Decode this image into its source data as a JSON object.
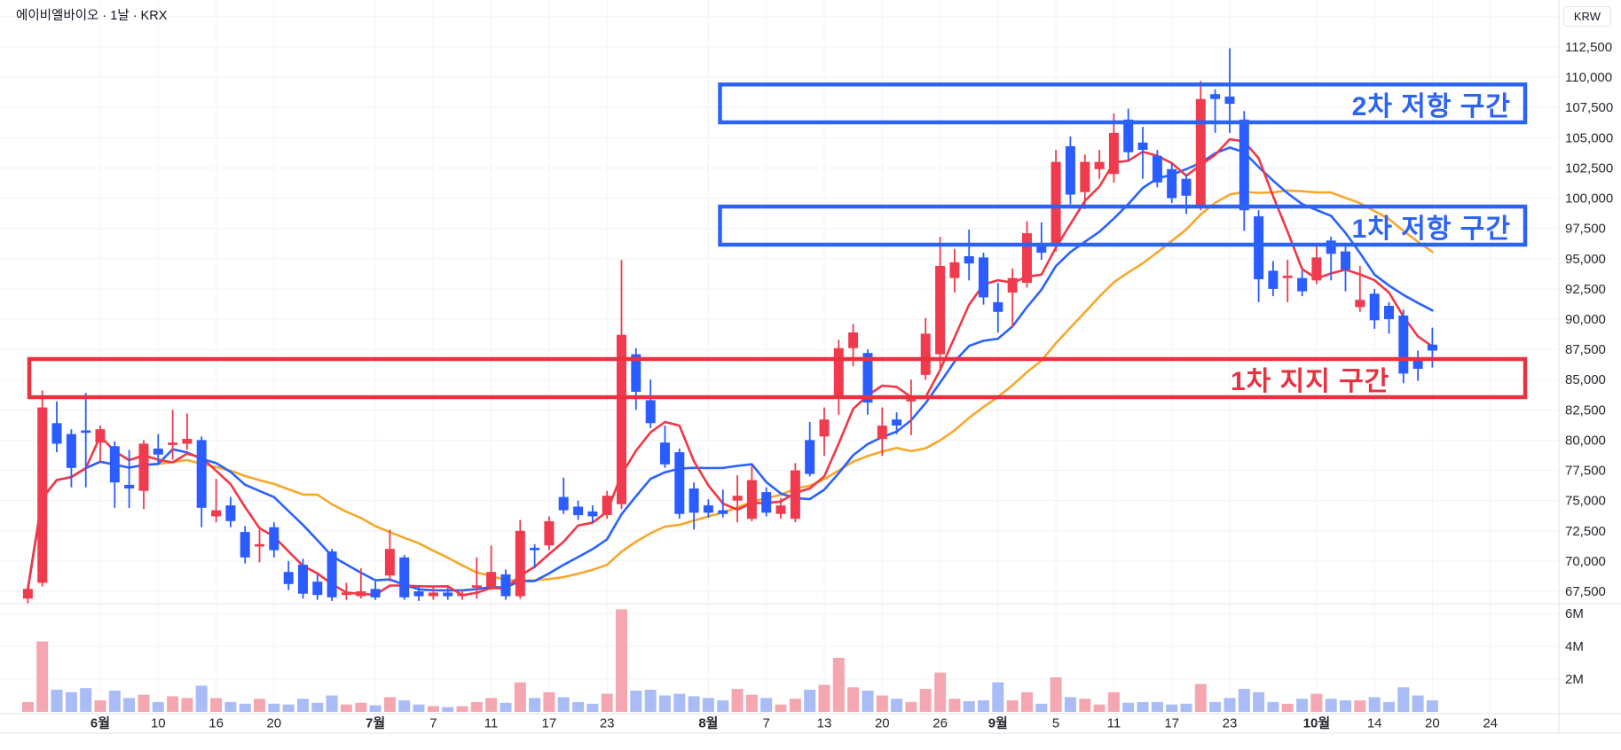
{
  "header": {
    "symbol_title": "에이비엘바이오 · 1날 · KRX"
  },
  "price_axis": {
    "currency_label": "KRW",
    "ticks": [
      {
        "label": "112,500",
        "value": 112500
      },
      {
        "label": "110,000",
        "value": 110000
      },
      {
        "label": "107,500",
        "value": 107500
      },
      {
        "label": "105,000",
        "value": 105000
      },
      {
        "label": "102,500",
        "value": 102500
      },
      {
        "label": "100,000",
        "value": 100000
      },
      {
        "label": "97,500",
        "value": 97500
      },
      {
        "label": "95,000",
        "value": 95000
      },
      {
        "label": "92,500",
        "value": 92500
      },
      {
        "label": "90,000",
        "value": 90000
      },
      {
        "label": "87,500",
        "value": 87500
      },
      {
        "label": "85,000",
        "value": 85000
      },
      {
        "label": "82,500",
        "value": 82500
      },
      {
        "label": "80,000",
        "value": 80000
      },
      {
        "label": "77,500",
        "value": 77500
      },
      {
        "label": "75,000",
        "value": 75000
      },
      {
        "label": "72,500",
        "value": 72500
      },
      {
        "label": "70,000",
        "value": 70000
      },
      {
        "label": "67,500",
        "value": 67500
      }
    ]
  },
  "volume_axis": {
    "ticks": [
      {
        "label": "6M",
        "value": 6
      },
      {
        "label": "4M",
        "value": 4
      },
      {
        "label": "2M",
        "value": 2
      }
    ]
  },
  "time_axis": {
    "ticks": [
      {
        "label": "6월",
        "index": 5,
        "bold": true
      },
      {
        "label": "10",
        "index": 9,
        "bold": false
      },
      {
        "label": "16",
        "index": 13,
        "bold": false
      },
      {
        "label": "20",
        "index": 17,
        "bold": false
      },
      {
        "label": "7월",
        "index": 24,
        "bold": true
      },
      {
        "label": "7",
        "index": 28,
        "bold": false
      },
      {
        "label": "11",
        "index": 32,
        "bold": false
      },
      {
        "label": "17",
        "index": 36,
        "bold": false
      },
      {
        "label": "23",
        "index": 40,
        "bold": false
      },
      {
        "label": "8월",
        "index": 47,
        "bold": true
      },
      {
        "label": "7",
        "index": 51,
        "bold": false
      },
      {
        "label": "13",
        "index": 55,
        "bold": false
      },
      {
        "label": "20",
        "index": 59,
        "bold": false
      },
      {
        "label": "26",
        "index": 63,
        "bold": false
      },
      {
        "label": "9월",
        "index": 67,
        "bold": true
      },
      {
        "label": "5",
        "index": 71,
        "bold": false
      },
      {
        "label": "11",
        "index": 75,
        "bold": false
      },
      {
        "label": "17",
        "index": 79,
        "bold": false
      },
      {
        "label": "23",
        "index": 83,
        "bold": false
      },
      {
        "label": "10월",
        "index": 89,
        "bold": true
      },
      {
        "label": "14",
        "index": 93,
        "bold": false
      },
      {
        "label": "20",
        "index": 97,
        "bold": false
      },
      {
        "label": "24",
        "index": 101,
        "bold": false
      }
    ]
  },
  "zones": [
    {
      "id": "resistance-2",
      "label": "2차 저항 구간",
      "price_top": 109400,
      "price_bottom": 106270,
      "start_index": 47.8,
      "color": "#2D63F2"
    },
    {
      "id": "resistance-1",
      "label": "1차 저항 구간",
      "price_top": 99310,
      "price_bottom": 96160,
      "start_index": 47.8,
      "color": "#2D63F2"
    },
    {
      "id": "support-1",
      "label": "1차 지지 구간",
      "price_top": 86700,
      "price_bottom": 83550,
      "start_index": 0.1,
      "color": "#E9323F"
    }
  ],
  "chart_data": {
    "type": "candlestick",
    "title": "에이비엘바이오 1날 캔들 차트 (KRX, KRW)",
    "symbol": "에이비엘바이오",
    "interval": "1날",
    "exchange": "KRX",
    "currency": "KRW",
    "ylabel": "KRW",
    "ylim": [
      66500,
      114000
    ],
    "volume_unit": "M",
    "volume_ylim": [
      0,
      6.6
    ],
    "grid": true,
    "up_color": "#EF3B4D",
    "down_color": "#2A5CFF",
    "volume_up_color": "#F5A7B1",
    "volume_down_color": "#A9BCF5",
    "annotations": [
      "2차 저항 구간 ≈ 106,300–109,400",
      "1차 저항 구간 ≈ 96,200–99,300",
      "1차 지지 구간 ≈ 83,600–86,700"
    ],
    "moving_averages": [
      {
        "name": "ma-fast",
        "period": 5,
        "color": "#F23645"
      },
      {
        "name": "ma-mid",
        "period": 10,
        "color": "#2962FF"
      },
      {
        "name": "ma-slow",
        "period": 20,
        "color": "#F8A72B"
      }
    ],
    "columns": [
      "date",
      "open",
      "high",
      "low",
      "close",
      "volume_m"
    ],
    "candles": [
      [
        "2025-05-26",
        66900,
        67900,
        66500,
        67700,
        0.6
      ],
      [
        "2025-05-27",
        68200,
        84100,
        67900,
        82700,
        4.3
      ],
      [
        "2025-05-28",
        81400,
        83200,
        79000,
        79700,
        1.35
      ],
      [
        "2025-05-29",
        80500,
        80900,
        76100,
        77700,
        1.2
      ],
      [
        "2025-05-30",
        80800,
        83900,
        76100,
        80600,
        1.45
      ],
      [
        "2025-06-02",
        79800,
        81200,
        78200,
        80900,
        0.7
      ],
      [
        "2025-06-04",
        79500,
        79900,
        74400,
        76500,
        1.3
      ],
      [
        "2025-06-05",
        76300,
        79200,
        74400,
        76000,
        0.85
      ],
      [
        "2025-06-09",
        75800,
        80000,
        74300,
        79700,
        1.05
      ],
      [
        "2025-06-10",
        79300,
        80500,
        78000,
        78800,
        0.6
      ],
      [
        "2025-06-11",
        79600,
        82500,
        78400,
        79800,
        0.95
      ],
      [
        "2025-06-12",
        79700,
        82200,
        79200,
        80100,
        0.85
      ],
      [
        "2025-06-13",
        80000,
        80300,
        72800,
        74400,
        1.6
      ],
      [
        "2025-06-16",
        73700,
        76800,
        73200,
        74200,
        0.85
      ],
      [
        "2025-06-17",
        74600,
        75300,
        72800,
        73300,
        0.6
      ],
      [
        "2025-06-18",
        72400,
        72900,
        69800,
        70300,
        0.5
      ],
      [
        "2025-06-19",
        71200,
        72600,
        69900,
        71400,
        0.8
      ],
      [
        "2025-06-20",
        72800,
        73200,
        70300,
        70900,
        0.5
      ],
      [
        "2025-06-23",
        69100,
        70000,
        67600,
        68100,
        0.45
      ],
      [
        "2025-06-24",
        69700,
        70200,
        66900,
        67300,
        0.8
      ],
      [
        "2025-06-25",
        68300,
        68900,
        66800,
        67200,
        0.55
      ],
      [
        "2025-06-26",
        70800,
        71000,
        66700,
        67000,
        1.0
      ],
      [
        "2025-06-27",
        67200,
        68200,
        66800,
        67400,
        0.45
      ],
      [
        "2025-06-30",
        67100,
        69400,
        66900,
        67500,
        0.55
      ],
      [
        "2025-07-01",
        67700,
        68300,
        66800,
        67000,
        0.4
      ],
      [
        "2025-07-02",
        68800,
        72600,
        68300,
        71000,
        0.9
      ],
      [
        "2025-07-03",
        70300,
        70500,
        66800,
        67000,
        0.7
      ],
      [
        "2025-07-04",
        67500,
        68000,
        66700,
        67100,
        0.45
      ],
      [
        "2025-07-07",
        67100,
        67900,
        66800,
        67400,
        0.35
      ],
      [
        "2025-07-08",
        67400,
        67800,
        66800,
        67100,
        0.3
      ],
      [
        "2025-07-09",
        67100,
        67600,
        66800,
        67300,
        0.35
      ],
      [
        "2025-07-10",
        67800,
        70300,
        66900,
        68000,
        0.6
      ],
      [
        "2025-07-11",
        67900,
        71300,
        67600,
        69100,
        0.85
      ],
      [
        "2025-07-14",
        68900,
        69300,
        66800,
        67100,
        0.55
      ],
      [
        "2025-07-15",
        67100,
        73400,
        66900,
        72500,
        1.8
      ],
      [
        "2025-07-16",
        71100,
        71400,
        69400,
        70900,
        0.85
      ],
      [
        "2025-07-17",
        71300,
        73700,
        70900,
        73300,
        1.2
      ],
      [
        "2025-07-18",
        75300,
        76900,
        73900,
        74200,
        0.9
      ],
      [
        "2025-07-21",
        74500,
        75000,
        73400,
        73800,
        0.6
      ],
      [
        "2025-07-22",
        74100,
        74600,
        73200,
        73700,
        0.5
      ],
      [
        "2025-07-23",
        73800,
        75800,
        73500,
        75400,
        1.1
      ],
      [
        "2025-07-24",
        74700,
        94900,
        74300,
        88700,
        6.25
      ],
      [
        "2025-07-25",
        87100,
        87600,
        82500,
        84000,
        1.3
      ],
      [
        "2025-07-28",
        83300,
        85000,
        81000,
        81400,
        1.35
      ],
      [
        "2025-07-29",
        79800,
        81200,
        77700,
        78000,
        1.0
      ],
      [
        "2025-07-30",
        79000,
        79300,
        73500,
        73900,
        1.1
      ],
      [
        "2025-07-31",
        76000,
        76500,
        72600,
        74000,
        0.95
      ],
      [
        "2025-08-01",
        74600,
        75100,
        73600,
        74000,
        0.85
      ],
      [
        "2025-08-04",
        74200,
        75900,
        73600,
        73900,
        0.7
      ],
      [
        "2025-08-05",
        75000,
        77100,
        73200,
        75400,
        1.4
      ],
      [
        "2025-08-06",
        73500,
        77900,
        73300,
        76700,
        1.05
      ],
      [
        "2025-08-07",
        75700,
        76100,
        73700,
        74000,
        0.85
      ],
      [
        "2025-08-08",
        73900,
        75200,
        73500,
        74600,
        0.45
      ],
      [
        "2025-08-11",
        73500,
        78100,
        73200,
        77500,
        0.8
      ],
      [
        "2025-08-12",
        80000,
        81500,
        77000,
        77200,
        1.35
      ],
      [
        "2025-08-13",
        80300,
        82700,
        78700,
        81700,
        1.65
      ],
      [
        "2025-08-14",
        83600,
        88300,
        82100,
        87600,
        3.3
      ],
      [
        "2025-08-18",
        87600,
        89600,
        86100,
        88900,
        1.5
      ],
      [
        "2025-08-19",
        87200,
        87500,
        82100,
        83100,
        1.3
      ],
      [
        "2025-08-20",
        80100,
        82700,
        78700,
        81200,
        1.0
      ],
      [
        "2025-08-21",
        81700,
        82300,
        80500,
        81200,
        0.8
      ],
      [
        "2025-08-22",
        83200,
        85000,
        80400,
        83400,
        0.6
      ],
      [
        "2025-08-25",
        85400,
        90100,
        85000,
        88800,
        1.4
      ],
      [
        "2025-08-26",
        87100,
        96800,
        85800,
        94400,
        2.4
      ],
      [
        "2025-08-27",
        93400,
        95800,
        92200,
        94700,
        0.8
      ],
      [
        "2025-08-28",
        95200,
        97400,
        93200,
        94600,
        0.65
      ],
      [
        "2025-08-29",
        95100,
        95500,
        91200,
        91800,
        0.7
      ],
      [
        "2025-09-01",
        91400,
        93000,
        88900,
        90600,
        1.8
      ],
      [
        "2025-09-02",
        92200,
        94200,
        89300,
        93400,
        0.7
      ],
      [
        "2025-09-03",
        93000,
        98100,
        92600,
        97100,
        1.2
      ],
      [
        "2025-09-04",
        96100,
        98000,
        94900,
        95500,
        0.5
      ],
      [
        "2025-09-05",
        96200,
        104000,
        95600,
        103000,
        2.1
      ],
      [
        "2025-09-08",
        104300,
        105100,
        99500,
        100300,
        0.9
      ],
      [
        "2025-09-09",
        100500,
        103600,
        99100,
        103000,
        0.8
      ],
      [
        "2025-09-10",
        102400,
        104000,
        101600,
        103000,
        0.45
      ],
      [
        "2025-09-11",
        102000,
        107000,
        101300,
        105400,
        1.2
      ],
      [
        "2025-09-12",
        106500,
        107400,
        103100,
        103800,
        0.55
      ],
      [
        "2025-09-15",
        104600,
        105900,
        101600,
        104000,
        0.6
      ],
      [
        "2025-09-16",
        103500,
        104000,
        100900,
        101300,
        0.6
      ],
      [
        "2025-09-17",
        102400,
        102900,
        99600,
        100000,
        0.45
      ],
      [
        "2025-09-18",
        101600,
        102000,
        98700,
        100200,
        0.5
      ],
      [
        "2025-09-19",
        99400,
        109700,
        99000,
        108200,
        1.7
      ],
      [
        "2025-09-22",
        108600,
        109000,
        105400,
        108200,
        0.6
      ],
      [
        "2025-09-23",
        108400,
        112400,
        105400,
        107800,
        0.85
      ],
      [
        "2025-09-24",
        106500,
        107200,
        97300,
        99000,
        1.4
      ],
      [
        "2025-09-25",
        98500,
        99000,
        91400,
        93300,
        1.2
      ],
      [
        "2025-09-26",
        94000,
        94800,
        91900,
        92500,
        0.6
      ],
      [
        "2025-09-29",
        93400,
        94900,
        91400,
        93600,
        0.5
      ],
      [
        "2025-09-30",
        93400,
        94000,
        91900,
        92300,
        0.8
      ],
      [
        "2025-10-01",
        93200,
        96100,
        92900,
        95100,
        1.1
      ],
      [
        "2025-10-02",
        96500,
        96800,
        93200,
        95400,
        0.8
      ],
      [
        "2025-10-10",
        95600,
        96000,
        92300,
        94100,
        0.7
      ],
      [
        "2025-10-13",
        91000,
        94400,
        90600,
        91600,
        0.7
      ],
      [
        "2025-10-14",
        92100,
        92500,
        89200,
        89900,
        0.9
      ],
      [
        "2025-10-15",
        91100,
        91400,
        88800,
        90000,
        0.6
      ],
      [
        "2025-10-16",
        90300,
        90800,
        84700,
        85500,
        1.5
      ],
      [
        "2025-10-17",
        86600,
        87400,
        84900,
        85900,
        1.0
      ],
      [
        "2025-10-20",
        87900,
        89300,
        86000,
        87400,
        0.7
      ]
    ]
  }
}
